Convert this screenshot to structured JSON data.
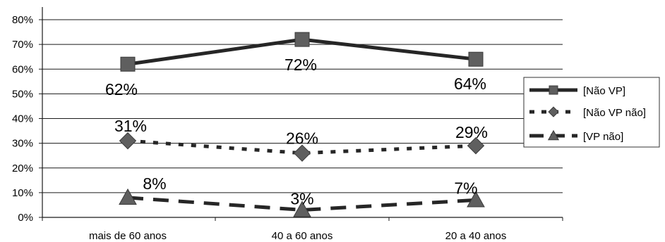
{
  "chart_data": {
    "type": "line",
    "categories": [
      "mais de 60 anos",
      "40 a 60 anos",
      "20 a 40 anos"
    ],
    "series": [
      {
        "name": "[Não VP]",
        "values": [
          62,
          72,
          64
        ],
        "labels": [
          "62%",
          "72%",
          "64%"
        ],
        "style": "solid",
        "marker": "square",
        "color": "#262626",
        "marker_color": "#5f5f5f"
      },
      {
        "name": "[Não VP não]",
        "values": [
          31,
          26,
          29
        ],
        "labels": [
          "31%",
          "26%",
          "29%"
        ],
        "style": "dotted",
        "marker": "diamond",
        "color": "#262626",
        "marker_color": "#5f5f5f"
      },
      {
        "name": "[VP não]",
        "values": [
          8,
          3,
          7
        ],
        "labels": [
          "8%",
          "3%",
          "7%"
        ],
        "style": "dashed",
        "marker": "triangle",
        "color": "#262626",
        "marker_color": "#5f5f5f"
      }
    ],
    "y_tick_labels": [
      "0%",
      "10%",
      "20%",
      "30%",
      "40%",
      "50%",
      "60%",
      "70%",
      "80%"
    ],
    "ylim": [
      0,
      80
    ],
    "y_unit": "%",
    "grid": true,
    "legend_position": "right"
  }
}
